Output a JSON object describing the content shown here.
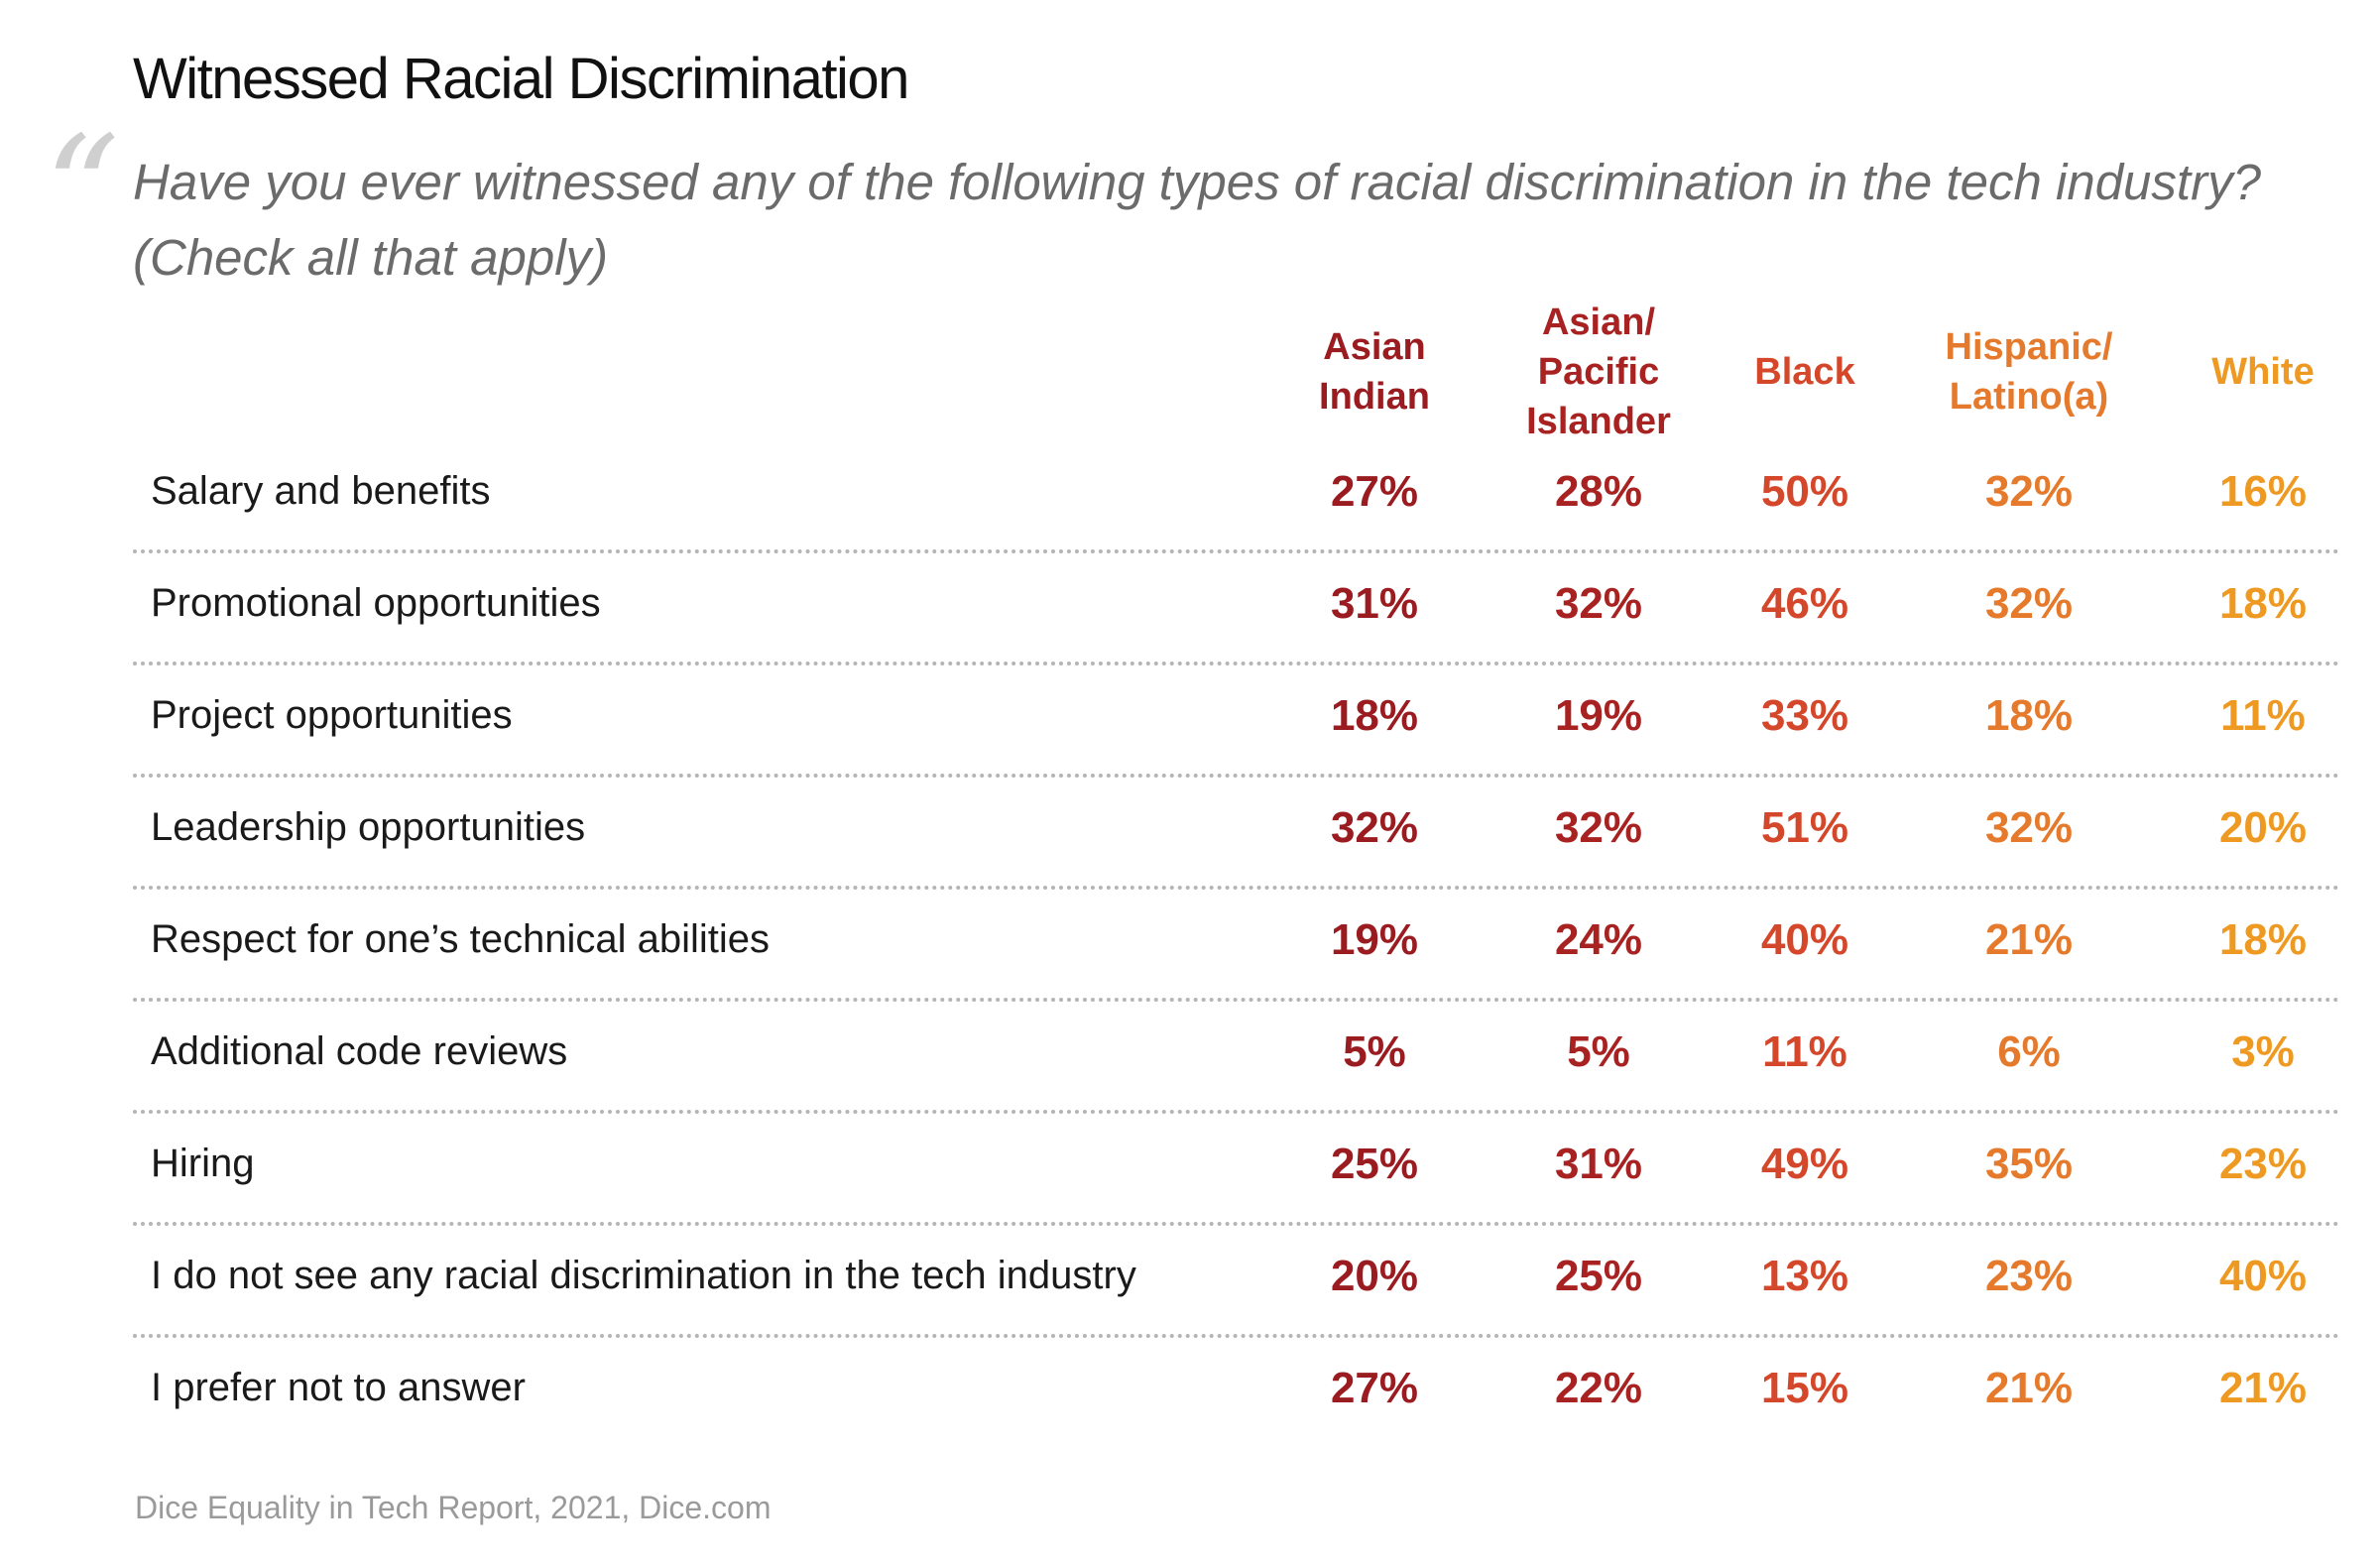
{
  "title": "Witnessed Racial Discrimination",
  "quote_glyph": "“",
  "question": "Have you ever witnessed any of the following types of racial discrimination in the tech industry? (Check all that apply)",
  "source": "Dice Equality in Tech Report, 2021, Dice.com",
  "chart_data": {
    "type": "table",
    "columns": [
      {
        "label": "Asian\nIndian",
        "color": "#9b1c20"
      },
      {
        "label": "Asian/\nPacific\nIslander",
        "color": "#a82222"
      },
      {
        "label": "Black",
        "color": "#d4472a"
      },
      {
        "label": "Hispanic/\nLatino(a)",
        "color": "#e57a2c"
      },
      {
        "label": "White",
        "color": "#ee9a22"
      }
    ],
    "rows": [
      {
        "label": "Salary and benefits",
        "values": [
          "27%",
          "28%",
          "50%",
          "32%",
          "16%"
        ]
      },
      {
        "label": "Promotional opportunities",
        "values": [
          "31%",
          "32%",
          "46%",
          "32%",
          "18%"
        ]
      },
      {
        "label": "Project opportunities",
        "values": [
          "18%",
          "19%",
          "33%",
          "18%",
          "11%"
        ]
      },
      {
        "label": "Leadership opportunities",
        "values": [
          "32%",
          "32%",
          "51%",
          "32%",
          "20%"
        ]
      },
      {
        "label": "Respect for one’s technical abilities",
        "values": [
          "19%",
          "24%",
          "40%",
          "21%",
          "18%"
        ]
      },
      {
        "label": "Additional code reviews",
        "values": [
          "5%",
          "5%",
          "11%",
          "6%",
          "3%"
        ]
      },
      {
        "label": "Hiring",
        "values": [
          "25%",
          "31%",
          "49%",
          "35%",
          "23%"
        ]
      },
      {
        "label": "I do not see any racial discrimination in the tech industry",
        "values": [
          "20%",
          "25%",
          "13%",
          "23%",
          "40%"
        ]
      },
      {
        "label": "I prefer not to answer",
        "values": [
          "27%",
          "22%",
          "15%",
          "21%",
          "21%"
        ]
      }
    ]
  }
}
